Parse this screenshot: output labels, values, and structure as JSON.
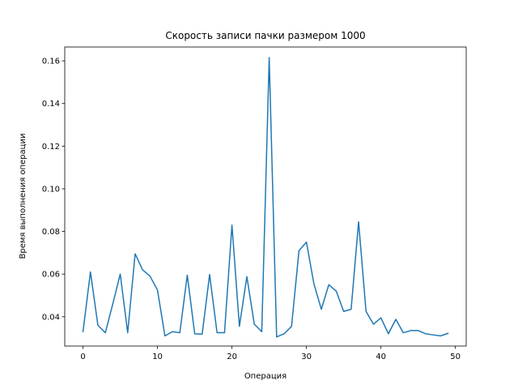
{
  "chart_data": {
    "type": "line",
    "title": "Скорость записи пачки размером 1000",
    "xlabel": "Операция",
    "ylabel": "Время выполнения операции",
    "xlim": [
      -2.45,
      51.45
    ],
    "ylim": [
      0.02625,
      0.1665
    ],
    "x_ticks": [
      0,
      10,
      20,
      30,
      40,
      50
    ],
    "y_ticks": [
      0.04,
      0.06,
      0.08,
      0.1,
      0.12,
      0.14,
      0.16
    ],
    "y_tick_labels": [
      "0.04",
      "0.06",
      "0.08",
      "0.10",
      "0.12",
      "0.14",
      "0.16"
    ],
    "grid": false,
    "line_color": "#1f77b4",
    "series": [
      {
        "x": [
          0,
          1,
          2,
          3,
          4,
          5,
          6,
          7,
          8,
          9,
          10,
          11,
          12,
          13,
          14,
          15,
          16,
          17,
          18,
          19,
          20,
          21,
          22,
          23,
          24,
          25,
          26,
          27,
          28,
          29,
          30,
          31,
          32,
          33,
          34,
          35,
          36,
          37,
          38,
          39,
          40,
          41,
          42,
          43,
          44,
          45,
          46,
          47,
          48,
          49
        ],
        "values": [
          0.033,
          0.061,
          0.036,
          0.0325,
          0.046,
          0.06,
          0.0325,
          0.0695,
          0.062,
          0.059,
          0.0525,
          0.031,
          0.033,
          0.0325,
          0.0595,
          0.032,
          0.0318,
          0.0598,
          0.0325,
          0.0325,
          0.083,
          0.0355,
          0.0588,
          0.0365,
          0.033,
          0.1615,
          0.0305,
          0.032,
          0.0355,
          0.071,
          0.075,
          0.0555,
          0.0435,
          0.055,
          0.052,
          0.0425,
          0.0435,
          0.0845,
          0.0425,
          0.0365,
          0.0395,
          0.032,
          0.0388,
          0.0325,
          0.0335,
          0.0335,
          0.032,
          0.0315,
          0.031,
          0.0322
        ]
      }
    ]
  }
}
